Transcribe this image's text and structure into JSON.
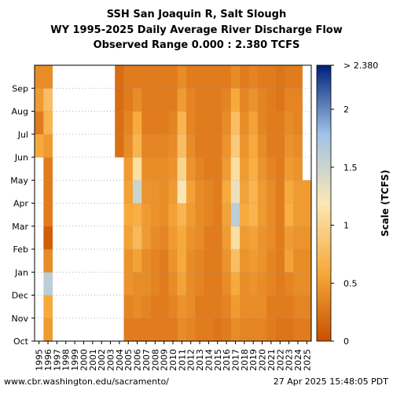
{
  "titles": {
    "line1": "SSH San Joaquin R, Salt Slough",
    "line2": "WY 1995-2025 Daily Average River Discharge Flow",
    "line3": "Observed Range 0.000 : 2.380 TCFS"
  },
  "footer": {
    "left": "www.cbr.washington.edu/sacramento/",
    "right": "27 Apr 2025 15:48:05 PDT"
  },
  "colors": {
    "low": "#c84f00",
    "mid_low": "#f7a93b",
    "mid": "#fce7b4",
    "mid_high": "#9fc3e6",
    "high": "#00207a",
    "background": "#ffffff"
  },
  "chart_data": {
    "type": "heatmap",
    "title": "SSH San Joaquin R, Salt Slough",
    "subtitle": "WY 1995-2025 Daily Average River Discharge Flow",
    "range_text": "Observed Range 0.000 : 2.380 TCFS",
    "x_label": "",
    "y_label": "",
    "colorbar_label": "Scale (TCFS)",
    "colorbar_range": [
      0,
      2.38
    ],
    "colorbar_ticks": [
      {
        "value": 0,
        "label": "0"
      },
      {
        "value": 0.5,
        "label": "0.5"
      },
      {
        "value": 1,
        "label": "1"
      },
      {
        "value": 1.5,
        "label": "1.5"
      },
      {
        "value": 2,
        "label": "2"
      },
      {
        "value": 2.38,
        "label": "> 2.380"
      }
    ],
    "x_categories": [
      "1995",
      "1996",
      "1997",
      "1998",
      "1999",
      "2000",
      "2001",
      "2002",
      "2003",
      "2004",
      "2005",
      "2006",
      "2007",
      "2008",
      "2009",
      "2010",
      "2011",
      "2012",
      "2013",
      "2014",
      "2015",
      "2016",
      "2017",
      "2018",
      "2019",
      "2020",
      "2021",
      "2022",
      "2023",
      "2024",
      "2025"
    ],
    "y_categories": [
      "Oct",
      "Nov",
      "Dec",
      "Jan",
      "Feb",
      "Mar",
      "Apr",
      "May",
      "Jun",
      "Jul",
      "Aug",
      "Sep"
    ],
    "grid": "dotted horizontal at month boundaries",
    "monthly_flow_tcfs": {
      "1995": [
        null,
        null,
        null,
        null,
        null,
        null,
        null,
        null,
        0.6,
        0.3,
        0.5,
        0.4
      ],
      "1996": [
        0.5,
        0.6,
        1.6,
        0.4,
        0.1,
        0.3,
        0.3,
        0.3,
        0.5,
        0.7,
        0.8,
        0.4
      ],
      "2004": [
        null,
        null,
        null,
        null,
        null,
        null,
        null,
        null,
        0.22,
        0.22,
        0.2,
        0.2
      ],
      "2005": [
        0.3,
        0.35,
        0.45,
        0.45,
        0.55,
        0.6,
        0.55,
        0.5,
        0.4,
        0.35,
        0.3,
        0.3
      ],
      "2006": [
        0.3,
        0.4,
        0.4,
        0.55,
        0.75,
        0.65,
        1.5,
        1.1,
        0.7,
        0.6,
        0.4,
        0.3
      ],
      "2007": [
        0.3,
        0.35,
        0.4,
        0.4,
        0.5,
        0.5,
        0.45,
        0.4,
        0.35,
        0.3,
        0.3,
        0.3
      ],
      "2008": [
        0.3,
        0.3,
        0.35,
        0.35,
        0.4,
        0.45,
        0.45,
        0.4,
        0.35,
        0.3,
        0.3,
        0.3
      ],
      "2009": [
        0.3,
        0.3,
        0.3,
        0.3,
        0.35,
        0.4,
        0.4,
        0.4,
        0.35,
        0.3,
        0.3,
        0.3
      ],
      "2010": [
        0.3,
        0.35,
        0.4,
        0.45,
        0.5,
        0.55,
        0.5,
        0.45,
        0.4,
        0.35,
        0.3,
        0.3
      ],
      "2011": [
        0.4,
        0.45,
        0.55,
        0.6,
        0.6,
        0.7,
        1.2,
        1.0,
        0.8,
        0.7,
        0.5,
        0.4
      ],
      "2012": [
        0.35,
        0.4,
        0.4,
        0.4,
        0.45,
        0.5,
        0.55,
        0.45,
        0.4,
        0.35,
        0.35,
        0.3
      ],
      "2013": [
        0.3,
        0.3,
        0.35,
        0.35,
        0.4,
        0.4,
        0.4,
        0.35,
        0.3,
        0.3,
        0.3,
        0.3
      ],
      "2014": [
        0.3,
        0.3,
        0.3,
        0.3,
        0.3,
        0.35,
        0.35,
        0.3,
        0.3,
        0.3,
        0.3,
        0.3
      ],
      "2015": [
        0.25,
        0.3,
        0.3,
        0.3,
        0.3,
        0.3,
        0.3,
        0.3,
        0.3,
        0.3,
        0.3,
        0.3
      ],
      "2016": [
        0.3,
        0.35,
        0.4,
        0.45,
        0.5,
        0.55,
        0.6,
        0.5,
        0.45,
        0.4,
        0.35,
        0.3
      ],
      "2017": [
        0.4,
        0.5,
        0.6,
        0.8,
        1.1,
        1.6,
        1.3,
        1.1,
        0.9,
        0.8,
        0.6,
        0.4
      ],
      "2018": [
        0.35,
        0.4,
        0.4,
        0.45,
        0.5,
        0.6,
        0.55,
        0.5,
        0.45,
        0.4,
        0.35,
        0.3
      ],
      "2019": [
        0.35,
        0.4,
        0.45,
        0.5,
        0.55,
        0.7,
        0.7,
        0.65,
        0.6,
        0.55,
        0.45,
        0.35
      ],
      "2020": [
        0.35,
        0.4,
        0.4,
        0.45,
        0.45,
        0.5,
        0.5,
        0.45,
        0.4,
        0.35,
        0.35,
        0.3
      ],
      "2021": [
        0.3,
        0.3,
        0.35,
        0.35,
        0.4,
        0.4,
        0.4,
        0.35,
        0.3,
        0.3,
        0.3,
        0.3
      ],
      "2022": [
        0.25,
        0.3,
        0.3,
        0.3,
        0.3,
        0.3,
        0.3,
        0.3,
        0.3,
        0.3,
        0.25,
        0.25
      ],
      "2023": [
        0.25,
        0.3,
        0.35,
        0.55,
        0.5,
        0.65,
        0.6,
        0.5,
        0.45,
        0.4,
        0.35,
        0.3
      ],
      "2024": [
        0.3,
        0.35,
        0.4,
        0.4,
        0.45,
        0.5,
        0.5,
        0.45,
        0.4,
        0.35,
        0.35,
        0.3
      ],
      "2025": [
        0.3,
        0.35,
        0.4,
        0.4,
        0.45,
        0.5,
        0.5,
        null,
        null,
        null,
        null,
        null
      ]
    }
  }
}
